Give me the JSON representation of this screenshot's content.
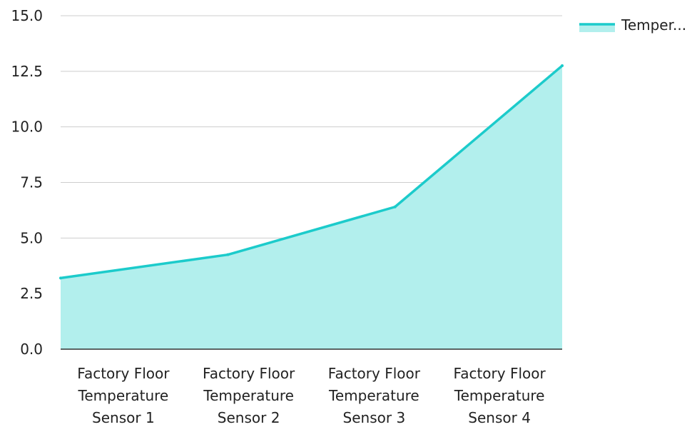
{
  "chart_data": {
    "type": "area",
    "title": "",
    "xlabel": "",
    "ylabel": "",
    "categories": [
      "Factory Floor Temperature Sensor 1",
      "Factory Floor Temperature Sensor 2",
      "Factory Floor Temperature Sensor 3",
      "Factory Floor Temperature Sensor 4"
    ],
    "category_label_lines": [
      [
        "Factory Floor",
        "Temperature",
        "Sensor 1"
      ],
      [
        "Factory Floor",
        "Temperature",
        "Sensor 2"
      ],
      [
        "Factory Floor",
        "Temperature",
        "Sensor 3"
      ],
      [
        "Factory Floor",
        "Temperature",
        "Sensor 4"
      ]
    ],
    "ylim": [
      0,
      15
    ],
    "yticks": [
      "0.0",
      "2.5",
      "5.0",
      "7.5",
      "10.0",
      "12.5",
      "15.0"
    ],
    "grid": true,
    "legend_position": "top-right",
    "series": [
      {
        "name": "Temper...",
        "values": [
          3.2,
          4.25,
          6.4,
          12.75
        ],
        "line_color": "#1ccbcb",
        "fill_color": "#b2efed"
      }
    ]
  }
}
